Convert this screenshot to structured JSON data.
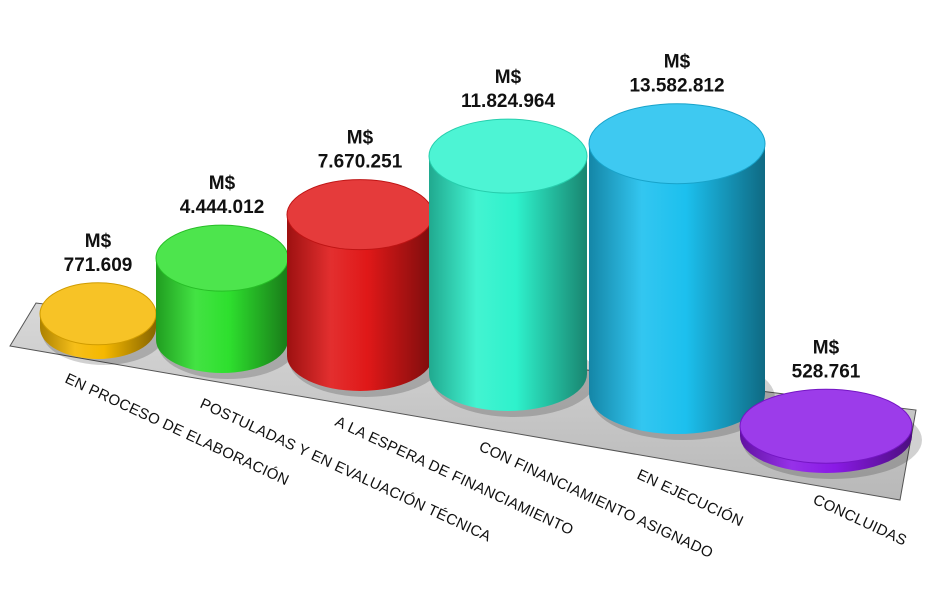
{
  "chart_data": {
    "type": "bar",
    "categories": [
      "EN PROCESO DE ELABORACIÓN",
      "POSTULADAS Y EN EVALUACIÓN TÉCNICA",
      "A LA ESPERA DE FINANCIAMIENTO",
      "CON FINANCIAMIENTO ASIGNADO",
      "EN EJECUCIÓN",
      "CONCLUIDAS"
    ],
    "values": [
      771609,
      4444012,
      7670251,
      11824964,
      13582812,
      528761
    ],
    "value_prefix": "M$",
    "value_labels": [
      "771.609",
      "4.444.012",
      "7.670.251",
      "11.824.964",
      "13.582.812",
      "528.761"
    ],
    "colors": [
      "#f5b800",
      "#2ee02e",
      "#e01818",
      "#2ef2cc",
      "#1cc0ee",
      "#8a1ae6"
    ],
    "style": "3d-cylinder",
    "ylim": [
      0,
      14000000
    ],
    "grid": false,
    "legend": "none"
  }
}
